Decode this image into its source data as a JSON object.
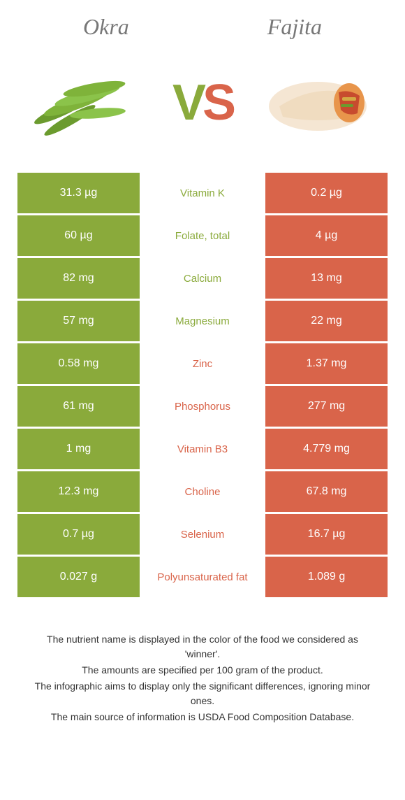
{
  "food1": {
    "name": "Okra",
    "color": "#8aaa3b"
  },
  "food2": {
    "name": "Fajita",
    "color": "#d9644a"
  },
  "vs": {
    "v": "V",
    "s": "S"
  },
  "rows": [
    {
      "left": "31.3 µg",
      "label": "Vitamin K",
      "right": "0.2 µg",
      "winner": "left"
    },
    {
      "left": "60 µg",
      "label": "Folate, total",
      "right": "4 µg",
      "winner": "left"
    },
    {
      "left": "82 mg",
      "label": "Calcium",
      "right": "13 mg",
      "winner": "left"
    },
    {
      "left": "57 mg",
      "label": "Magnesium",
      "right": "22 mg",
      "winner": "left"
    },
    {
      "left": "0.58 mg",
      "label": "Zinc",
      "right": "1.37 mg",
      "winner": "right"
    },
    {
      "left": "61 mg",
      "label": "Phosphorus",
      "right": "277 mg",
      "winner": "right"
    },
    {
      "left": "1 mg",
      "label": "Vitamin B3",
      "right": "4.779 mg",
      "winner": "right"
    },
    {
      "left": "12.3 mg",
      "label": "Choline",
      "right": "67.8 mg",
      "winner": "right"
    },
    {
      "left": "0.7 µg",
      "label": "Selenium",
      "right": "16.7 µg",
      "winner": "right"
    },
    {
      "left": "0.027 g",
      "label": "Polyunsaturated fat",
      "right": "1.089 g",
      "winner": "right"
    }
  ],
  "footer": {
    "line1": "The nutrient name is displayed in the color of the food we considered as 'winner'.",
    "line2": "The amounts are specified per 100 gram of the product.",
    "line3": "The infographic aims to display only the significant differences, ignoring minor ones.",
    "line4": "The main source of information is USDA Food Composition Database."
  }
}
